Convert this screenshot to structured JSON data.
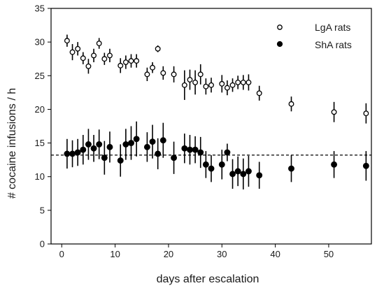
{
  "chart_data": {
    "type": "scatter",
    "title": "",
    "xlabel": "days after escalation",
    "ylabel": "# cocaine infusions / h",
    "xlim": [
      -2,
      58
    ],
    "ylim": [
      0,
      35
    ],
    "xticks": [
      0,
      10,
      20,
      30,
      40,
      50
    ],
    "yticks": [
      0,
      5,
      10,
      15,
      20,
      25,
      30,
      35
    ],
    "grid": false,
    "legend_position": "top-right",
    "reference_line": {
      "y": 13.2,
      "style": "dashed"
    },
    "series": [
      {
        "name": "LgA rats",
        "marker": "open-circle",
        "points": [
          {
            "x": 1,
            "y": 30.2,
            "err": 0.9
          },
          {
            "x": 2,
            "y": 28.5,
            "err": 1.2
          },
          {
            "x": 3,
            "y": 29.0,
            "err": 1.0
          },
          {
            "x": 4,
            "y": 27.6,
            "err": 0.9
          },
          {
            "x": 5,
            "y": 26.4,
            "err": 1.1
          },
          {
            "x": 6,
            "y": 28.0,
            "err": 1.0
          },
          {
            "x": 7,
            "y": 29.8,
            "err": 0.8
          },
          {
            "x": 8,
            "y": 27.5,
            "err": 0.9
          },
          {
            "x": 9,
            "y": 28.0,
            "err": 1.0
          },
          {
            "x": 11,
            "y": 26.5,
            "err": 1.1
          },
          {
            "x": 12,
            "y": 27.0,
            "err": 1.0
          },
          {
            "x": 13,
            "y": 27.2,
            "err": 1.0
          },
          {
            "x": 14,
            "y": 27.2,
            "err": 1.0
          },
          {
            "x": 16,
            "y": 25.2,
            "err": 1.0
          },
          {
            "x": 17,
            "y": 26.2,
            "err": 0.8
          },
          {
            "x": 18,
            "y": 29.0,
            "err": 0.5
          },
          {
            "x": 19,
            "y": 25.4,
            "err": 1.0
          },
          {
            "x": 21,
            "y": 25.2,
            "err": 1.2
          },
          {
            "x": 23,
            "y": 23.6,
            "err": 2.2
          },
          {
            "x": 24,
            "y": 24.4,
            "err": 1.5
          },
          {
            "x": 25,
            "y": 24.0,
            "err": 1.8
          },
          {
            "x": 26,
            "y": 25.2,
            "err": 1.5
          },
          {
            "x": 27,
            "y": 23.4,
            "err": 1.2
          },
          {
            "x": 28,
            "y": 23.6,
            "err": 1.1
          },
          {
            "x": 30,
            "y": 23.8,
            "err": 1.3
          },
          {
            "x": 31,
            "y": 23.2,
            "err": 1.1
          },
          {
            "x": 32,
            "y": 23.6,
            "err": 1.0
          },
          {
            "x": 33,
            "y": 24.0,
            "err": 1.0
          },
          {
            "x": 34,
            "y": 24.0,
            "err": 1.1
          },
          {
            "x": 35,
            "y": 24.0,
            "err": 1.2
          },
          {
            "x": 37,
            "y": 22.4,
            "err": 1.1
          },
          {
            "x": 43,
            "y": 20.8,
            "err": 1.1
          },
          {
            "x": 51,
            "y": 19.6,
            "err": 1.5
          },
          {
            "x": 57,
            "y": 19.4,
            "err": 1.5
          }
        ]
      },
      {
        "name": "ShA rats",
        "marker": "filled-circle",
        "points": [
          {
            "x": 1,
            "y": 13.4,
            "err": 2.2
          },
          {
            "x": 2,
            "y": 13.4,
            "err": 2.0
          },
          {
            "x": 3,
            "y": 13.6,
            "err": 2.0
          },
          {
            "x": 4,
            "y": 14.0,
            "err": 2.2
          },
          {
            "x": 5,
            "y": 14.8,
            "err": 2.3
          },
          {
            "x": 6,
            "y": 14.2,
            "err": 2.0
          },
          {
            "x": 7,
            "y": 14.8,
            "err": 2.2
          },
          {
            "x": 8,
            "y": 12.8,
            "err": 2.5
          },
          {
            "x": 9,
            "y": 14.4,
            "err": 2.3
          },
          {
            "x": 11,
            "y": 12.4,
            "err": 2.4
          },
          {
            "x": 12,
            "y": 14.8,
            "err": 2.3
          },
          {
            "x": 13,
            "y": 15.0,
            "err": 2.5
          },
          {
            "x": 14,
            "y": 15.6,
            "err": 2.6
          },
          {
            "x": 16,
            "y": 14.4,
            "err": 2.2
          },
          {
            "x": 17,
            "y": 15.2,
            "err": 2.5
          },
          {
            "x": 18,
            "y": 13.4,
            "err": 2.3
          },
          {
            "x": 19,
            "y": 15.4,
            "err": 2.6
          },
          {
            "x": 21,
            "y": 12.8,
            "err": 2.4
          },
          {
            "x": 23,
            "y": 14.2,
            "err": 2.2
          },
          {
            "x": 24,
            "y": 14.0,
            "err": 2.2
          },
          {
            "x": 25,
            "y": 14.0,
            "err": 2.0
          },
          {
            "x": 26,
            "y": 13.6,
            "err": 2.3
          },
          {
            "x": 27,
            "y": 11.8,
            "err": 2.0
          },
          {
            "x": 28,
            "y": 11.2,
            "err": 2.0
          },
          {
            "x": 30,
            "y": 11.8,
            "err": 2.2
          },
          {
            "x": 31,
            "y": 13.6,
            "err": 1.3
          },
          {
            "x": 32,
            "y": 10.4,
            "err": 2.2
          },
          {
            "x": 33,
            "y": 10.8,
            "err": 2.2
          },
          {
            "x": 34,
            "y": 10.4,
            "err": 2.3
          },
          {
            "x": 35,
            "y": 10.8,
            "err": 2.3
          },
          {
            "x": 37,
            "y": 10.2,
            "err": 2.0
          },
          {
            "x": 43,
            "y": 11.2,
            "err": 2.0
          },
          {
            "x": 51,
            "y": 11.8,
            "err": 2.0
          },
          {
            "x": 57,
            "y": 11.6,
            "err": 2.2
          }
        ]
      }
    ]
  }
}
